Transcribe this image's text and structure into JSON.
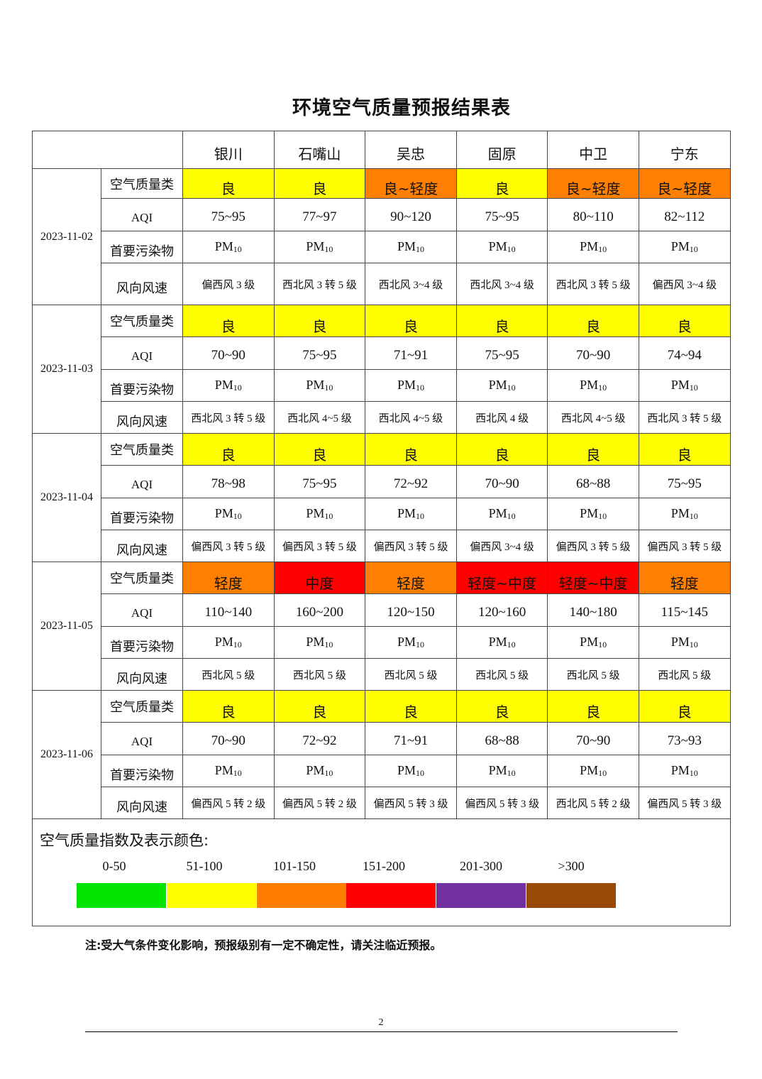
{
  "title": "环境空气质量预报结果表",
  "cities": [
    "银川",
    "石嘴山",
    "吴忠",
    "固原",
    "中卫",
    "宁东"
  ],
  "row_labels": {
    "category": "空气质量类",
    "aqi": "AQI",
    "pollutant": "首要污染物",
    "wind": "风向风速"
  },
  "pollutant": {
    "base": "PM",
    "sub": "10"
  },
  "colors": {
    "良": "#ffff00",
    "良~轻度": "#ff8000",
    "轻度": "#ff8000",
    "中度": "#ff0000",
    "轻度~中度": "#ff0000"
  },
  "days": [
    {
      "date": "2023-11-02",
      "category": [
        "良",
        "良",
        "良~轻度",
        "良",
        "良~轻度",
        "良~轻度"
      ],
      "aqi": [
        "75~95",
        "77~97",
        "90~120",
        "75~95",
        "80~110",
        "82~112"
      ],
      "wind": [
        "偏西风 3 级",
        "西北风 3 转 5 级",
        "西北风 3~4 级",
        "西北风 3~4 级",
        "西北风 3 转 5 级",
        "偏西风 3~4 级"
      ]
    },
    {
      "date": "2023-11-03",
      "category": [
        "良",
        "良",
        "良",
        "良",
        "良",
        "良"
      ],
      "aqi": [
        "70~90",
        "75~95",
        "71~91",
        "75~95",
        "70~90",
        "74~94"
      ],
      "wind": [
        "西北风 3 转 5 级",
        "西北风 4~5 级",
        "西北风 4~5 级",
        "西北风 4 级",
        "西北风 4~5 级",
        "西北风 3 转 5 级"
      ]
    },
    {
      "date": "2023-11-04",
      "category": [
        "良",
        "良",
        "良",
        "良",
        "良",
        "良"
      ],
      "aqi": [
        "78~98",
        "75~95",
        "72~92",
        "70~90",
        "68~88",
        "75~95"
      ],
      "wind": [
        "偏西风 3 转 5 级",
        "偏西风 3 转 5 级",
        "偏西风 3 转 5 级",
        "偏西风 3~4 级",
        "偏西风 3 转 5 级",
        "偏西风 3 转 5 级"
      ]
    },
    {
      "date": "2023-11-05",
      "category": [
        "轻度",
        "中度",
        "轻度",
        "轻度~中度",
        "轻度~中度",
        "轻度"
      ],
      "aqi": [
        "110~140",
        "160~200",
        "120~150",
        "120~160",
        "140~180",
        "115~145"
      ],
      "wind": [
        "西北风 5 级",
        "西北风 5 级",
        "西北风 5 级",
        "西北风 5 级",
        "西北风 5 级",
        "西北风 5 级"
      ]
    },
    {
      "date": "2023-11-06",
      "category": [
        "良",
        "良",
        "良",
        "良",
        "良",
        "良"
      ],
      "aqi": [
        "70~90",
        "72~92",
        "71~91",
        "68~88",
        "70~90",
        "73~93"
      ],
      "wind": [
        "偏西风 5 转 2 级",
        "偏西风 5 转 2 级",
        "偏西风 5 转 3 级",
        "偏西风 5 转 3 级",
        "西北风 5 转 2 级",
        "偏西风 5 转 3 级"
      ]
    }
  ],
  "legend": {
    "title": "空气质量指数及表示颜色:",
    "items": [
      {
        "range": "0-50",
        "color": "#00e400"
      },
      {
        "range": "51-100",
        "color": "#ffff00"
      },
      {
        "range": "101-150",
        "color": "#ff7e00"
      },
      {
        "range": "151-200",
        "color": "#ff0000"
      },
      {
        "range": "201-300",
        "color": "#7030a0"
      },
      {
        "range": ">300",
        "color": "#984807"
      }
    ]
  },
  "note": "注:受大气条件变化影响，预报级别有一定不确定性，请关注临近预报。",
  "page_number": "2"
}
